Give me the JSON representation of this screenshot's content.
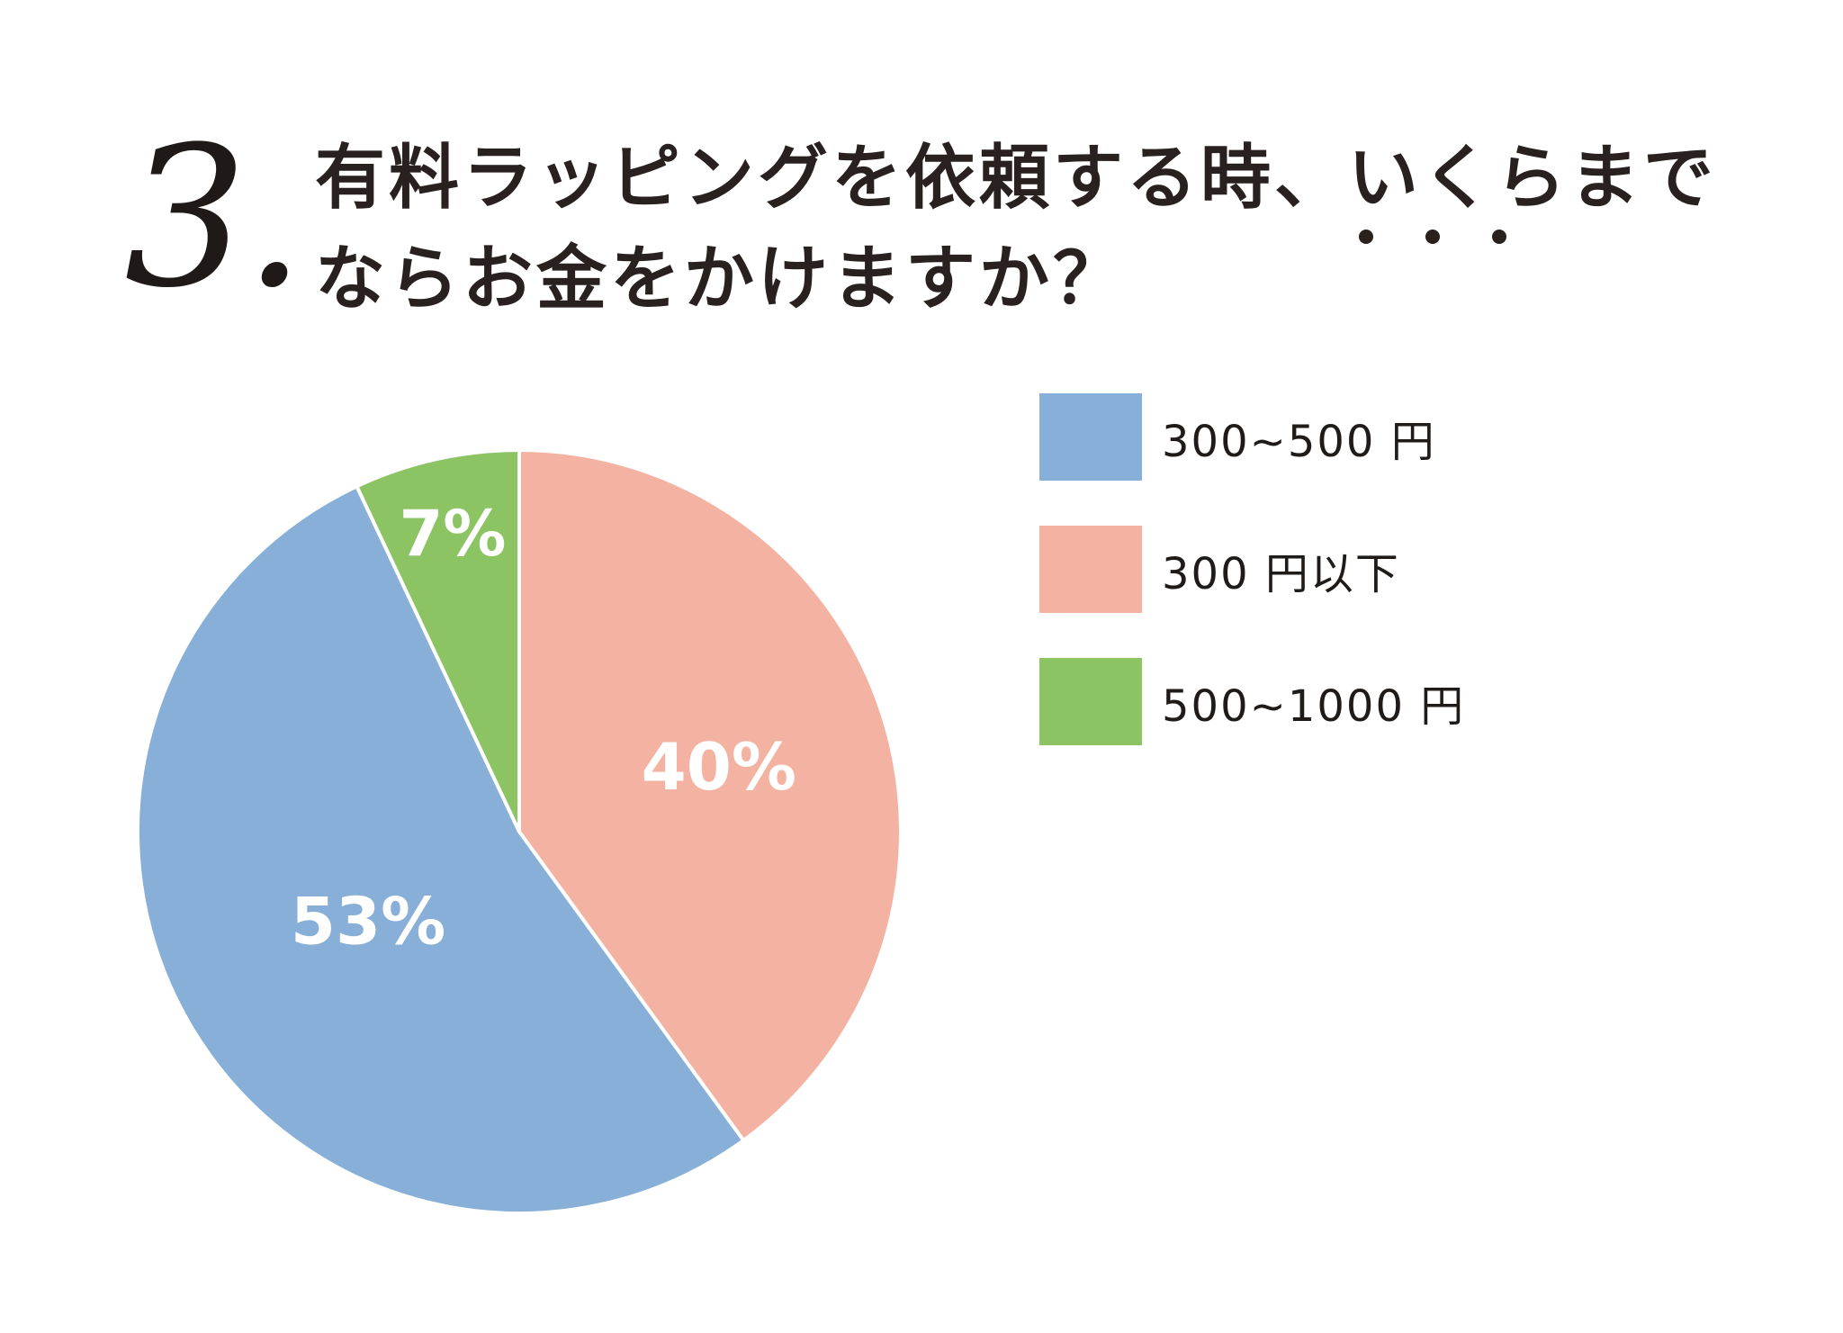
{
  "page": {
    "background": "#ffffff"
  },
  "header": {
    "question_number": "3.",
    "title_line1_pre": "有料ラッピングを依頼する時、",
    "title_emphasis": "いくら",
    "title_line1_post": "まで",
    "title_line2": "ならお金をかけますか？",
    "title_full": "有料ラッピングを依頼する時、いくらまでならお金をかけますか？"
  },
  "chart_data": {
    "type": "pie",
    "title": "有料ラッピングを依頼する時、いくらまでならお金をかけますか？",
    "start_angle_deg": 0,
    "direction": "clockwise",
    "legend_position": "right",
    "slices": [
      {
        "label": "300 円以下",
        "value": 40,
        "percent_label": "40%",
        "color": "#F4B2A2"
      },
      {
        "label": "300~500 円",
        "value": 53,
        "percent_label": "53%",
        "color": "#87AFD7"
      },
      {
        "label": "500~1000 円",
        "value": 7,
        "percent_label": "7%",
        "color": "#8CC464"
      }
    ],
    "separator_color": "#FFFFFF",
    "label_color": "#FFFFFF"
  },
  "legend": {
    "items": [
      {
        "label": "300~500 円",
        "color": "#87AFD7"
      },
      {
        "label": "300 円以下",
        "color": "#F4B2A2"
      },
      {
        "label": "500~1000 円",
        "color": "#8CC464"
      }
    ]
  }
}
